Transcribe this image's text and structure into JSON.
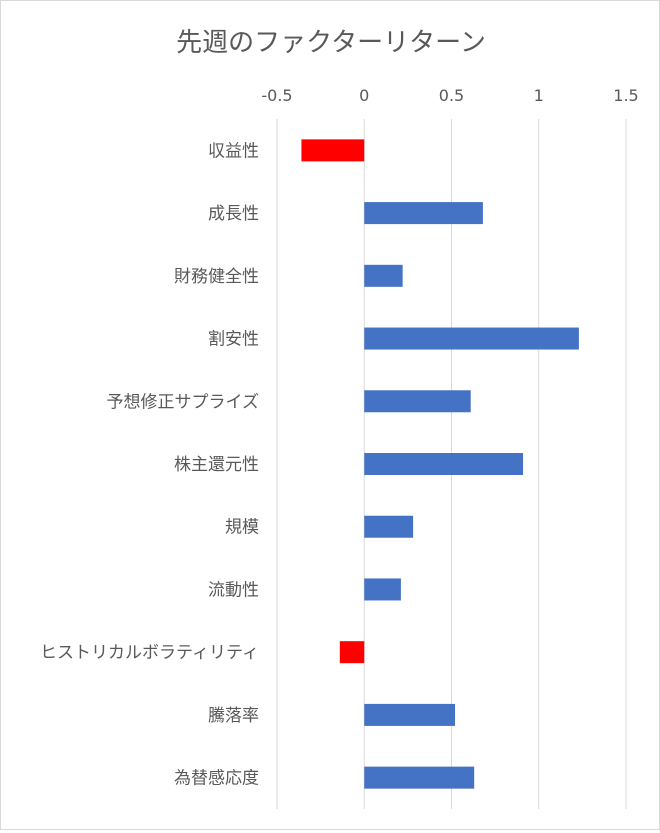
{
  "chart_data": {
    "type": "bar",
    "orientation": "horizontal",
    "title": "先週のファクターリターン",
    "xlabel": "",
    "ylabel": "",
    "xlim": [
      -0.5,
      1.5
    ],
    "x_ticks": [
      -0.5,
      0,
      0.5,
      1,
      1.5
    ],
    "x_tick_labels": [
      "-0.5",
      "0",
      "0.5",
      "1",
      "1.5"
    ],
    "x_axis_position": "top",
    "grid": "vertical",
    "legend": "none",
    "categories": [
      "収益性",
      "成長性",
      "財務健全性",
      "割安性",
      "予想修正サプライズ",
      "株主還元性",
      "規模",
      "流動性",
      "ヒストリカルボラティリティ",
      "騰落率",
      "為替感応度"
    ],
    "values": [
      -0.36,
      0.68,
      0.22,
      1.23,
      0.61,
      0.91,
      0.28,
      0.21,
      -0.14,
      0.52,
      0.63
    ],
    "colors": {
      "positive": "#4472C4",
      "negative": "#FF0000",
      "grid": "#d9d9d9",
      "text": "#595959"
    }
  }
}
